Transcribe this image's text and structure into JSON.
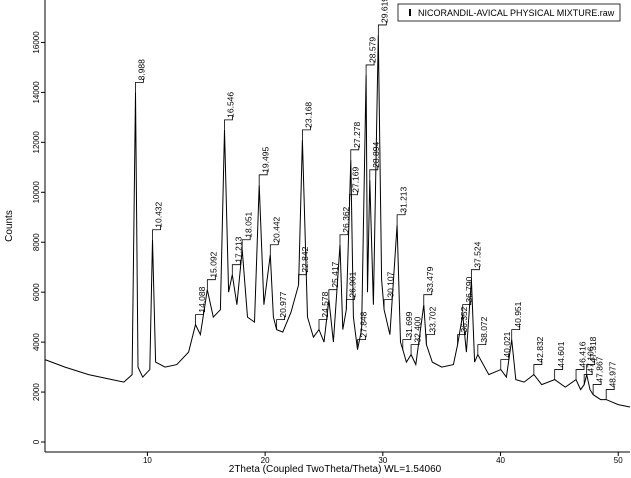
{
  "chart_data": {
    "type": "line",
    "xlabel": "2Theta (Coupled TwoTheta/Theta) WL=1.54060",
    "ylabel": "Counts",
    "xlim": [
      1.3,
      51
    ],
    "xticks": [
      10,
      20,
      30,
      40,
      50
    ],
    "ylim": [
      -400,
      17700
    ],
    "yticks": [
      0,
      2000,
      4000,
      6000,
      8000,
      10000,
      12000,
      14000,
      16000
    ],
    "legend": "top-right",
    "series": [
      {
        "name": "NICORANDIL-AVICAL PHYSICAL MIXTURE.raw",
        "color": "#000000",
        "x": [
          1.3,
          3,
          5,
          7,
          8,
          8.7,
          8.988,
          9.2,
          9.6,
          10.2,
          10.432,
          10.7,
          11.5,
          12.5,
          13.5,
          14.088,
          14.5,
          15.092,
          15.6,
          16.2,
          16.546,
          16.9,
          17.213,
          17.6,
          18.051,
          18.5,
          19.1,
          19.495,
          19.9,
          20.442,
          20.7,
          20.977,
          21.5,
          22.2,
          22.842,
          23.168,
          23.6,
          24.1,
          24.578,
          25,
          25.417,
          25.8,
          26.362,
          26.6,
          26.901,
          27.169,
          27.278,
          27.5,
          27.848,
          28.2,
          28.579,
          28.7,
          28.894,
          29.2,
          29.619,
          29.9,
          30.107,
          30.6,
          31.213,
          31.5,
          31.699,
          32,
          32.4,
          32.8,
          33.479,
          33.702,
          34.2,
          35,
          36,
          36.352,
          36.79,
          37.1,
          37.524,
          37.8,
          38.072,
          39,
          40.021,
          40.5,
          40.951,
          41.3,
          42,
          42.832,
          43.5,
          44.601,
          45.5,
          46.416,
          46.8,
          47.106,
          47.318,
          47.6,
          47.867,
          48.5,
          48.977,
          50,
          51
        ],
        "values": [
          3300,
          3000,
          2700,
          2500,
          2400,
          2700,
          14000,
          3000,
          2600,
          2900,
          8100,
          3200,
          3000,
          3100,
          3600,
          4700,
          4300,
          6100,
          5000,
          5300,
          12500,
          6000,
          6700,
          5500,
          7700,
          5000,
          4800,
          10300,
          5500,
          7500,
          5000,
          4500,
          4400,
          5200,
          6300,
          12100,
          5000,
          4200,
          4500,
          4000,
          5700,
          4000,
          7900,
          4500,
          5300,
          9500,
          11300,
          5000,
          3700,
          4500,
          14700,
          6000,
          10500,
          5500,
          16300,
          6500,
          5300,
          4300,
          8700,
          4000,
          3700,
          3200,
          3500,
          3100,
          5500,
          3900,
          3200,
          3000,
          3100,
          3900,
          5100,
          3600,
          6500,
          3200,
          3500,
          2700,
          2900,
          2600,
          4100,
          2500,
          2400,
          2700,
          2300,
          2500,
          2200,
          2500,
          2100,
          2300,
          2700,
          2100,
          1900,
          1700,
          1700,
          1500,
          1400
        ]
      }
    ],
    "annotations": [
      {
        "text": "8.988",
        "x": 8.988,
        "y": 14000
      },
      {
        "text": "10.432",
        "x": 10.432,
        "y": 8100
      },
      {
        "text": "14.088",
        "x": 14.088,
        "y": 4700
      },
      {
        "text": "15.092",
        "x": 15.092,
        "y": 6100
      },
      {
        "text": "16.546",
        "x": 16.546,
        "y": 12500
      },
      {
        "text": "17.213",
        "x": 17.213,
        "y": 6700
      },
      {
        "text": "18.051",
        "x": 18.051,
        "y": 7700
      },
      {
        "text": "19.495",
        "x": 19.495,
        "y": 10300
      },
      {
        "text": "20.442",
        "x": 20.442,
        "y": 7500
      },
      {
        "text": "20.977",
        "x": 20.977,
        "y": 4500
      },
      {
        "text": "22.842",
        "x": 22.842,
        "y": 6300
      },
      {
        "text": "23.168",
        "x": 23.168,
        "y": 12100
      },
      {
        "text": "24.578",
        "x": 24.578,
        "y": 4500
      },
      {
        "text": "25.417",
        "x": 25.417,
        "y": 5700
      },
      {
        "text": "26.362",
        "x": 26.362,
        "y": 7900
      },
      {
        "text": "26.901",
        "x": 26.901,
        "y": 5300
      },
      {
        "text": "27.169",
        "x": 27.169,
        "y": 9500
      },
      {
        "text": "27.278",
        "x": 27.278,
        "y": 11300
      },
      {
        "text": "27.848",
        "x": 27.848,
        "y": 3700
      },
      {
        "text": "28.579",
        "x": 28.579,
        "y": 14700
      },
      {
        "text": "28.894",
        "x": 28.894,
        "y": 10500
      },
      {
        "text": "29.619",
        "x": 29.619,
        "y": 16300
      },
      {
        "text": "30.107",
        "x": 30.107,
        "y": 5300
      },
      {
        "text": "31.213",
        "x": 31.213,
        "y": 8700
      },
      {
        "text": "31.699",
        "x": 31.699,
        "y": 3700
      },
      {
        "text": "32.400",
        "x": 32.4,
        "y": 3500
      },
      {
        "text": "33.479",
        "x": 33.479,
        "y": 5500
      },
      {
        "text": "33.702",
        "x": 33.702,
        "y": 3900
      },
      {
        "text": "36.352",
        "x": 36.352,
        "y": 3900
      },
      {
        "text": "36.790",
        "x": 36.79,
        "y": 5100
      },
      {
        "text": "37.524",
        "x": 37.524,
        "y": 6500
      },
      {
        "text": "38.072",
        "x": 38.072,
        "y": 3500
      },
      {
        "text": "40.021",
        "x": 40.021,
        "y": 2900
      },
      {
        "text": "40.951",
        "x": 40.951,
        "y": 4100
      },
      {
        "text": "42.832",
        "x": 42.832,
        "y": 2700
      },
      {
        "text": "44.601",
        "x": 44.601,
        "y": 2500
      },
      {
        "text": "46.416",
        "x": 46.416,
        "y": 2500
      },
      {
        "text": "47.106",
        "x": 47.106,
        "y": 2300
      },
      {
        "text": "47.318",
        "x": 47.318,
        "y": 2700
      },
      {
        "text": "47.867",
        "x": 47.867,
        "y": 1900
      },
      {
        "text": "48.977",
        "x": 48.977,
        "y": 1700
      }
    ]
  }
}
